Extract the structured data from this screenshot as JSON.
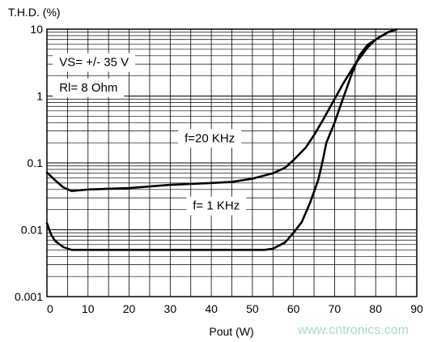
{
  "chart_data": {
    "type": "line",
    "ylabel": "T.H.D.  (%)",
    "xlabel": "Pout  (W)",
    "xlim": [
      0,
      90
    ],
    "ylim": [
      0.001,
      10
    ],
    "yscale": "log",
    "grid": true,
    "x_ticks": [
      0,
      10,
      20,
      30,
      40,
      50,
      60,
      70,
      80,
      90
    ],
    "y_ticks": [
      {
        "value": 0.001,
        "label": "0.001"
      },
      {
        "value": 0.01,
        "label": "0.01"
      },
      {
        "value": 0.1,
        "label": "0.1"
      },
      {
        "value": 1,
        "label": "1"
      },
      {
        "value": 10,
        "label": "10"
      }
    ],
    "annotations": [
      {
        "text": "VS=  +/- 35 V",
        "x": 3,
        "y": 2.8
      },
      {
        "text": "Rl= 8 Ohm",
        "x": 3,
        "y": 1.17
      },
      {
        "text": "f=20 KHz",
        "x": 33.5,
        "y": 0.205
      },
      {
        "text": "f= 1 KHz",
        "x": 35.5,
        "y": 0.02
      }
    ],
    "series": [
      {
        "name": "f=20 KHz",
        "points": [
          [
            0,
            0.072
          ],
          [
            2,
            0.055
          ],
          [
            4,
            0.043
          ],
          [
            6,
            0.038
          ],
          [
            8,
            0.039
          ],
          [
            10,
            0.04
          ],
          [
            20,
            0.042
          ],
          [
            30,
            0.047
          ],
          [
            40,
            0.05
          ],
          [
            45,
            0.052
          ],
          [
            50,
            0.058
          ],
          [
            55,
            0.07
          ],
          [
            58,
            0.085
          ],
          [
            60,
            0.11
          ],
          [
            63,
            0.17
          ],
          [
            65,
            0.26
          ],
          [
            67,
            0.42
          ],
          [
            70,
            0.9
          ],
          [
            72,
            1.5
          ],
          [
            75,
            3.0
          ],
          [
            78,
            5.3
          ],
          [
            80,
            7.0
          ],
          [
            83,
            9.0
          ],
          [
            85,
            9.9
          ]
        ]
      },
      {
        "name": "f= 1 KHz",
        "points": [
          [
            0,
            0.0125
          ],
          [
            1,
            0.0085
          ],
          [
            2,
            0.0068
          ],
          [
            4,
            0.0055
          ],
          [
            6,
            0.005
          ],
          [
            10,
            0.005
          ],
          [
            20,
            0.005
          ],
          [
            30,
            0.005
          ],
          [
            40,
            0.005
          ],
          [
            50,
            0.005
          ],
          [
            53,
            0.005
          ],
          [
            55,
            0.0052
          ],
          [
            58,
            0.0065
          ],
          [
            60,
            0.009
          ],
          [
            62,
            0.013
          ],
          [
            64,
            0.025
          ],
          [
            66,
            0.055
          ],
          [
            67,
            0.1
          ],
          [
            68,
            0.2
          ],
          [
            70,
            0.4
          ],
          [
            72,
            0.9
          ],
          [
            74,
            2.0
          ],
          [
            76,
            4.0
          ],
          [
            78,
            5.8
          ],
          [
            80,
            7.0
          ],
          [
            83,
            9.0
          ],
          [
            85,
            9.9
          ]
        ]
      }
    ]
  },
  "watermark": "www.cntronics.com"
}
